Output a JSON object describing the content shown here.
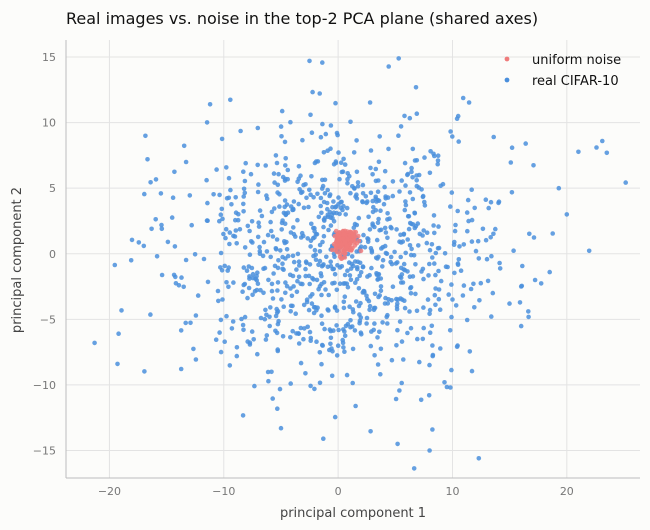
{
  "chart_data": {
    "type": "scatter",
    "title": "Real images vs. noise in the top-2 PCA plane (shared axes)",
    "xlabel": "principal component 1",
    "ylabel": "principal component 2",
    "xlim": [
      -23.8,
      26.4
    ],
    "ylim": [
      -17.1,
      16.3
    ],
    "xticks": [
      -20,
      -10,
      0,
      10,
      20
    ],
    "yticks": [
      -15,
      -10,
      -5,
      0,
      5,
      10,
      15
    ],
    "grid": true,
    "legend_position": "top-right",
    "series": [
      {
        "name": "uniform noise",
        "color": "#ef7b7b",
        "generator": {
          "kind": "gaussian-cluster",
          "count": 160,
          "center": [
            0.6,
            0.9
          ],
          "std": [
            0.45,
            0.45
          ],
          "seed": 7
        },
        "points": [
          [
            0.6,
            0.9
          ],
          [
            0.1,
            1.3
          ],
          [
            1.1,
            0.4
          ],
          [
            -0.2,
            0.6
          ],
          [
            1.3,
            1.4
          ],
          [
            0.5,
            0.1
          ],
          [
            0.8,
            1.7
          ],
          [
            -0.1,
            1.0
          ]
        ]
      },
      {
        "name": "real CIFAR-10",
        "color": "#4a8fdc",
        "generator": {
          "kind": "gaussian-cloud",
          "count": 1000,
          "center": [
            0,
            0
          ],
          "std": [
            7.2,
            5.0
          ],
          "seed": 42
        },
        "points": [
          [
            5.3,
            14.9
          ],
          [
            -11.2,
            11.4
          ],
          [
            -21.3,
            -6.8
          ],
          [
            -19.3,
            -8.4
          ],
          [
            -19.2,
            -6.1
          ],
          [
            -18.1,
            -0.5
          ],
          [
            23.1,
            8.6
          ],
          [
            23.5,
            7.7
          ],
          [
            22.6,
            8.1
          ],
          [
            12.3,
            -15.6
          ],
          [
            10.5,
            10.5
          ],
          [
            16.4,
            8.4
          ],
          [
            -5.0,
            -13.3
          ],
          [
            5.2,
            -14.5
          ],
          [
            8.0,
            -15.0
          ],
          [
            -1.3,
            -14.1
          ],
          [
            -13.3,
            7.0
          ],
          [
            -17.0,
            0.6
          ],
          [
            -15.5,
            4.6
          ],
          [
            19.3,
            5.0
          ],
          [
            20.0,
            3.0
          ],
          [
            18.5,
            -1.4
          ]
        ]
      }
    ]
  }
}
